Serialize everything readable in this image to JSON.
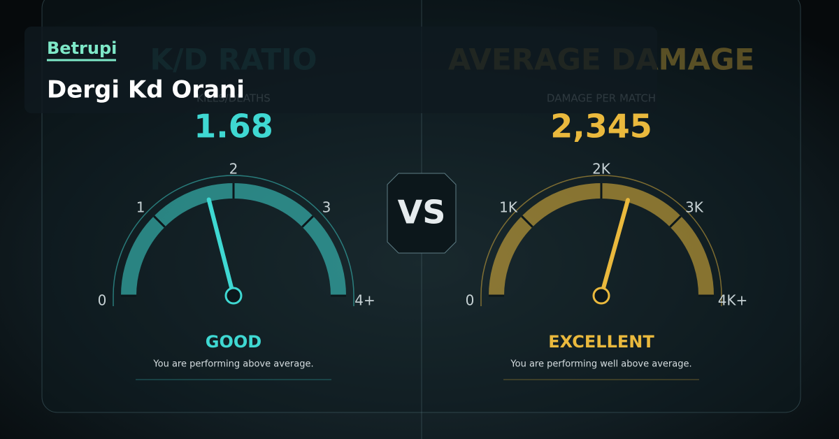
{
  "brand": "Betrupi",
  "title": "Dergi Kd Orani",
  "vs": "VS",
  "gauges": [
    {
      "heading": "K/D RATIO",
      "subheading": "KILLS/DEATHS",
      "value": 1.68,
      "color": "#3fd8d2",
      "ticks": [
        0,
        1,
        2,
        3,
        {
          "value": 4,
          "label": "4+"
        }
      ],
      "rating": "GOOD",
      "description": "You are performing above average."
    },
    {
      "heading": "AVERAGE DAMAGE",
      "subheading": "DAMAGE PER MATCH",
      "value": 2345,
      "value_label": "2,345",
      "color": "#eab93d",
      "ticks": [
        0,
        {
          "value": 1000,
          "label": "1K"
        },
        {
          "value": 2000,
          "label": "2K"
        },
        {
          "value": 3000,
          "label": "3K"
        },
        {
          "value": 4000,
          "label": "4K+"
        }
      ],
      "rating": "EXCELLENT",
      "description": "You are performing well above average."
    }
  ]
}
